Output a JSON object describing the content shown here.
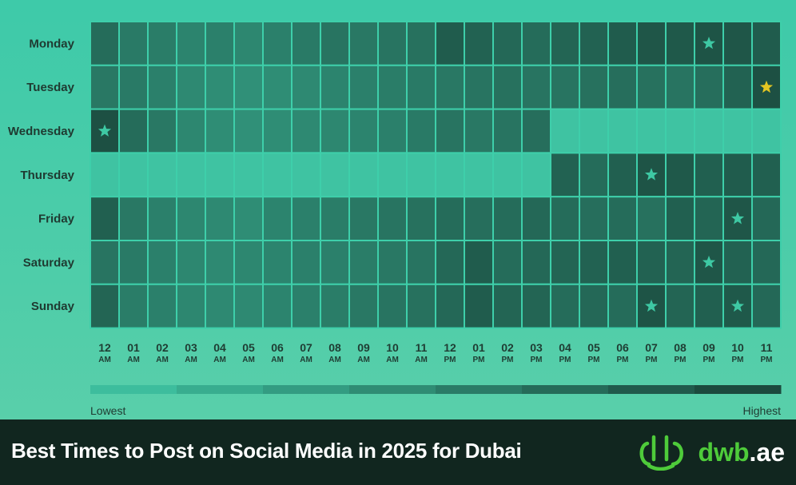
{
  "chart_data": {
    "type": "heatmap",
    "rows": [
      "Monday",
      "Tuesday",
      "Wednesday",
      "Thursday",
      "Friday",
      "Saturday",
      "Sunday"
    ],
    "columns": [
      {
        "hour": "12",
        "period": "AM"
      },
      {
        "hour": "01",
        "period": "AM"
      },
      {
        "hour": "02",
        "period": "AM"
      },
      {
        "hour": "03",
        "period": "AM"
      },
      {
        "hour": "04",
        "period": "AM"
      },
      {
        "hour": "05",
        "period": "AM"
      },
      {
        "hour": "06",
        "period": "AM"
      },
      {
        "hour": "07",
        "period": "AM"
      },
      {
        "hour": "08",
        "period": "AM"
      },
      {
        "hour": "09",
        "period": "AM"
      },
      {
        "hour": "10",
        "period": "AM"
      },
      {
        "hour": "11",
        "period": "AM"
      },
      {
        "hour": "12",
        "period": "PM"
      },
      {
        "hour": "01",
        "period": "PM"
      },
      {
        "hour": "02",
        "period": "PM"
      },
      {
        "hour": "03",
        "period": "PM"
      },
      {
        "hour": "04",
        "period": "PM"
      },
      {
        "hour": "05",
        "period": "PM"
      },
      {
        "hour": "06",
        "period": "PM"
      },
      {
        "hour": "07",
        "period": "PM"
      },
      {
        "hour": "08",
        "period": "PM"
      },
      {
        "hour": "09",
        "period": "PM"
      },
      {
        "hour": "10",
        "period": "PM"
      },
      {
        "hour": "11",
        "period": "PM"
      }
    ],
    "values": [
      [
        0.72,
        0.6,
        0.58,
        0.52,
        0.55,
        0.5,
        0.55,
        0.6,
        0.65,
        0.62,
        0.65,
        0.68,
        0.85,
        0.8,
        0.75,
        0.72,
        0.78,
        0.8,
        0.85,
        0.9,
        0.88,
        0.92,
        0.9,
        0.85
      ],
      [
        0.62,
        0.6,
        0.55,
        0.48,
        0.45,
        0.42,
        0.45,
        0.48,
        0.52,
        0.55,
        0.58,
        0.6,
        0.62,
        0.65,
        0.68,
        0.65,
        0.65,
        0.68,
        0.7,
        0.68,
        0.65,
        0.7,
        0.8,
        0.95
      ],
      [
        0.95,
        0.72,
        0.62,
        0.5,
        0.45,
        0.42,
        0.45,
        0.48,
        0.5,
        0.52,
        0.55,
        0.6,
        0.65,
        0.62,
        0.65,
        0.7,
        null,
        null,
        null,
        null,
        null,
        null,
        null,
        null
      ],
      [
        null,
        null,
        null,
        null,
        null,
        null,
        null,
        null,
        null,
        null,
        null,
        null,
        null,
        null,
        null,
        null,
        0.8,
        0.72,
        0.82,
        0.92,
        0.88,
        0.82,
        0.85,
        0.82
      ],
      [
        0.82,
        0.62,
        0.55,
        0.5,
        0.48,
        0.45,
        0.52,
        0.55,
        0.58,
        0.62,
        0.65,
        0.68,
        0.72,
        0.7,
        0.72,
        0.75,
        0.72,
        0.7,
        0.72,
        0.68,
        0.82,
        0.78,
        0.9,
        0.75
      ],
      [
        0.65,
        0.6,
        0.55,
        0.5,
        0.48,
        0.5,
        0.52,
        0.55,
        0.55,
        0.58,
        0.62,
        0.65,
        0.75,
        0.85,
        0.72,
        0.75,
        0.78,
        0.8,
        0.82,
        0.8,
        0.78,
        0.9,
        0.8,
        0.75
      ],
      [
        0.78,
        0.58,
        0.55,
        0.5,
        0.48,
        0.48,
        0.52,
        0.55,
        0.58,
        0.62,
        0.65,
        0.68,
        0.75,
        0.85,
        0.78,
        0.78,
        0.72,
        0.75,
        0.72,
        0.92,
        0.78,
        0.82,
        0.88,
        0.75
      ]
    ],
    "empty_cells_shown_as": "lowest",
    "stars": [
      {
        "row": 0,
        "col": 21,
        "color": "#3ec9a4"
      },
      {
        "row": 1,
        "col": 23,
        "color": "#e4c622"
      },
      {
        "row": 2,
        "col": 0,
        "color": "#3ec9a4"
      },
      {
        "row": 3,
        "col": 19,
        "color": "#3ec9a4"
      },
      {
        "row": 4,
        "col": 22,
        "color": "#3ec9a4"
      },
      {
        "row": 5,
        "col": 21,
        "color": "#3ec9a4"
      },
      {
        "row": 6,
        "col": 19,
        "color": "#3ec9a4"
      },
      {
        "row": 6,
        "col": 22,
        "color": "#3ec9a4"
      }
    ],
    "color_scale": {
      "low": "#3fc3a2",
      "high": "#1b4a3e"
    },
    "legend": {
      "low_label": "Lowest",
      "high_label": "Highest"
    }
  },
  "footer": {
    "title": "Best Times to Post on Social Media in 2025 for Dubai",
    "brand_name": "dwb",
    "brand_tld": ".ae"
  },
  "colors": {
    "footer_bg": "#11261f",
    "brand_green": "#4ecb3a"
  }
}
